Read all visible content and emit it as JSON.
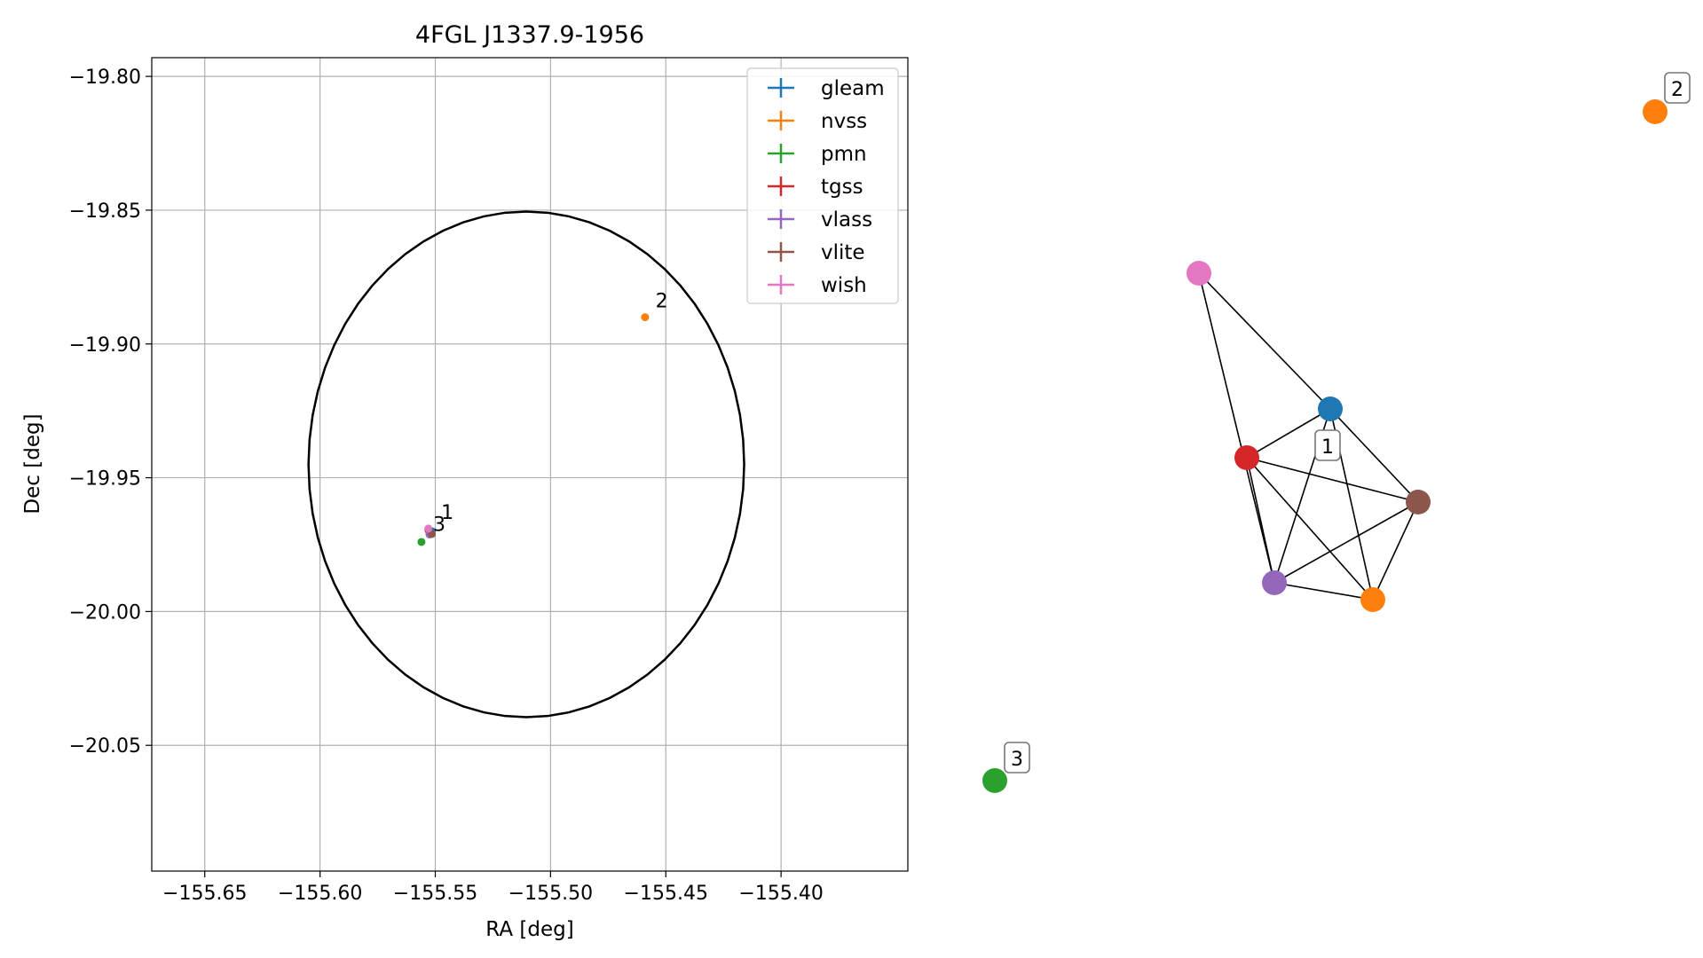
{
  "colors": {
    "gleam": "#1f77b4",
    "nvss": "#ff7f0e",
    "pmn": "#2ca02c",
    "tgss": "#d62728",
    "vlass": "#9467bd",
    "vlite": "#8c564b",
    "wish": "#e377c2",
    "circle": "#000000",
    "grid": "#b0b0b0"
  },
  "chart_data": [
    {
      "type": "scatter",
      "title": "4FGL J1337.9-1956",
      "xlabel": "RA [deg]",
      "ylabel": "Dec [deg]",
      "xlim": [
        -155.673,
        -155.345
      ],
      "ylim": [
        -20.097,
        -19.793
      ],
      "xticks": [
        -155.65,
        -155.6,
        -155.55,
        -155.5,
        -155.45,
        -155.4
      ],
      "xtick_labels": [
        "−155.65",
        "−155.60",
        "−155.55",
        "−155.50",
        "−155.45",
        "−155.40"
      ],
      "yticks": [
        -19.8,
        -19.85,
        -19.9,
        -19.95,
        -20.0,
        -20.05
      ],
      "ytick_labels": [
        "−19.80",
        "−19.85",
        "−19.90",
        "−19.95",
        "−20.00",
        "−20.05"
      ],
      "grid": true,
      "legend_position": "top-right",
      "circle": {
        "center": [
          -155.5105,
          -19.945
        ],
        "radius_deg": 0.0945
      },
      "series": [
        {
          "name": "gleam",
          "points": [
            {
              "x": -155.5515,
              "y": -19.97
            }
          ]
        },
        {
          "name": "nvss",
          "points": [
            {
              "x": -155.5525,
              "y": -19.9705
            },
            {
              "x": -155.459,
              "y": -19.89
            }
          ]
        },
        {
          "name": "pmn",
          "points": [
            {
              "x": -155.556,
              "y": -19.974
            }
          ]
        },
        {
          "name": "tgss",
          "points": [
            {
              "x": -155.553,
              "y": -19.9695
            }
          ]
        },
        {
          "name": "vlass",
          "points": [
            {
              "x": -155.5525,
              "y": -19.9712
            }
          ]
        },
        {
          "name": "vlite",
          "points": [
            {
              "x": -155.5515,
              "y": -19.971
            }
          ]
        },
        {
          "name": "wish",
          "points": [
            {
              "x": -155.553,
              "y": -19.969
            }
          ]
        }
      ],
      "annotations": [
        {
          "text": "1",
          "x": -155.549,
          "y": -19.966
        },
        {
          "text": "2",
          "x": -155.456,
          "y": -19.887
        },
        {
          "text": "3",
          "x": -155.5525,
          "y": -19.9705
        }
      ]
    },
    {
      "type": "network",
      "nodes": [
        {
          "id": "wish",
          "color": "#e377c2"
        },
        {
          "id": "gleam",
          "color": "#1f77b4"
        },
        {
          "id": "tgss",
          "color": "#d62728"
        },
        {
          "id": "vlite",
          "color": "#8c564b"
        },
        {
          "id": "vlass",
          "color": "#9467bd"
        },
        {
          "id": "nvss-1",
          "color": "#ff7f0e"
        },
        {
          "id": "nvss-2",
          "color": "#ff7f0e"
        },
        {
          "id": "pmn",
          "color": "#2ca02c"
        }
      ],
      "edges": [
        [
          "wish",
          "gleam"
        ],
        [
          "wish",
          "vlass"
        ],
        [
          "gleam",
          "tgss"
        ],
        [
          "gleam",
          "vlite"
        ],
        [
          "gleam",
          "vlass"
        ],
        [
          "gleam",
          "nvss-1"
        ],
        [
          "tgss",
          "vlite"
        ],
        [
          "tgss",
          "vlass"
        ],
        [
          "tgss",
          "nvss-1"
        ],
        [
          "vlite",
          "vlass"
        ],
        [
          "vlite",
          "nvss-1"
        ],
        [
          "vlass",
          "nvss-1"
        ]
      ],
      "labels": [
        "1",
        "2",
        "3"
      ]
    }
  ]
}
